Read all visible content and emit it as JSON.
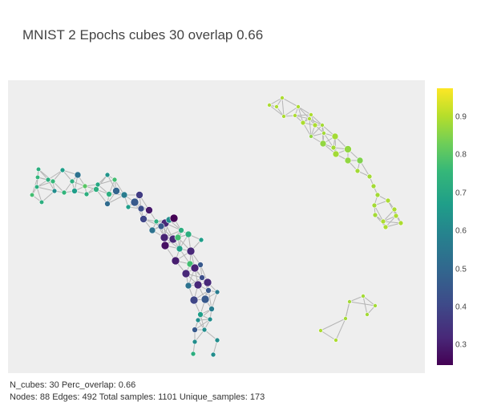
{
  "title": "MNIST 2 Epochs cubes 30 overlap 0.66",
  "colorbar": {
    "ticks": [
      "0.9",
      "0.8",
      "0.7",
      "0.6",
      "0.5",
      "0.4",
      "0.3"
    ],
    "colors": [
      "#440154",
      "#482878",
      "#3e4a89",
      "#31688e",
      "#26828e",
      "#1f9e89",
      "#35b779",
      "#6ece58",
      "#b5de2b",
      "#fde725"
    ],
    "range": [
      0.25,
      0.97
    ]
  },
  "footer": {
    "line1_label": "N_cubes:",
    "line1_value": " 30 ",
    "line1_label2": "Perc_overlap:",
    "line1_value2": " 0.66",
    "line2_label1": "Nodes:",
    "line2_value1": " 88 ",
    "line2_label2": "Edges:",
    "line2_value2": " 492 ",
    "line2_label3": "Total samples:",
    "line2_value3": " 1101 ",
    "line2_label4": "Unique_samples:",
    "line2_value4": " 173"
  },
  "colors": {
    "edge": "#b5b5b5",
    "plot_bg": "#eeeeee"
  }
}
